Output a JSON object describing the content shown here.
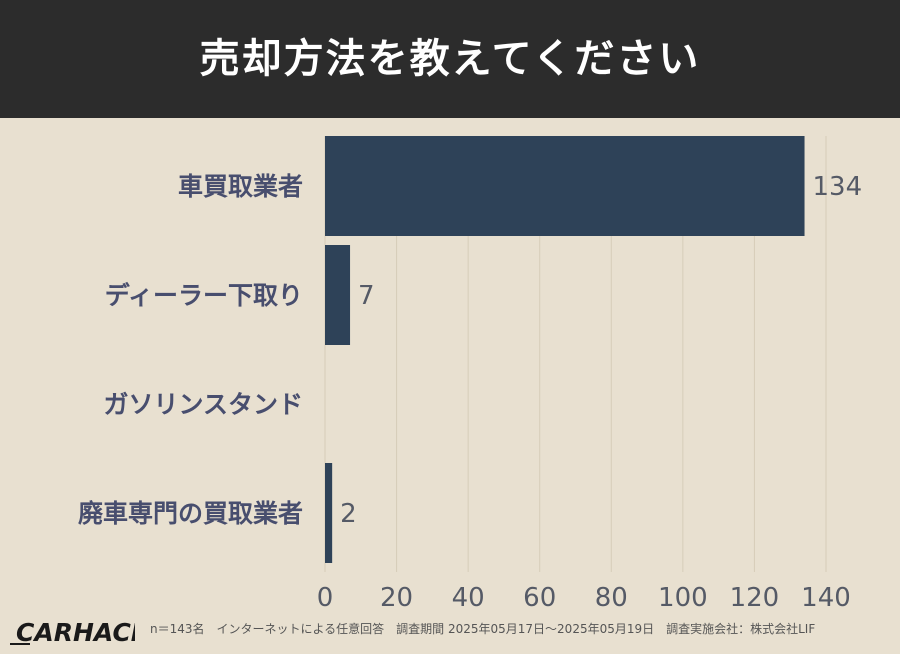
{
  "header": {
    "title": "売却方法を教えてください"
  },
  "chart_data": {
    "type": "bar",
    "orientation": "horizontal",
    "categories": [
      "車買取業者",
      "ディーラー下取り",
      "ガソリンスタンド",
      "廃車専門の買取業者"
    ],
    "values": [
      134,
      7,
      0,
      2
    ],
    "value_labels": [
      "134",
      "7",
      "",
      "2"
    ],
    "xlim": [
      0,
      140
    ],
    "x_ticks": [
      "0",
      "20",
      "40",
      "60",
      "80",
      "100",
      "120",
      "140"
    ],
    "grid": true,
    "bar_color": "#2e4258",
    "category_color": "#484e6e",
    "tick_color": "#555a66"
  },
  "footer": {
    "logo": "CARHACK",
    "note": "n＝143名　インターネットによる任意回答　調査期間 2025年05月17日～2025年05月19日　調査実施会社：株式会社LIF"
  }
}
